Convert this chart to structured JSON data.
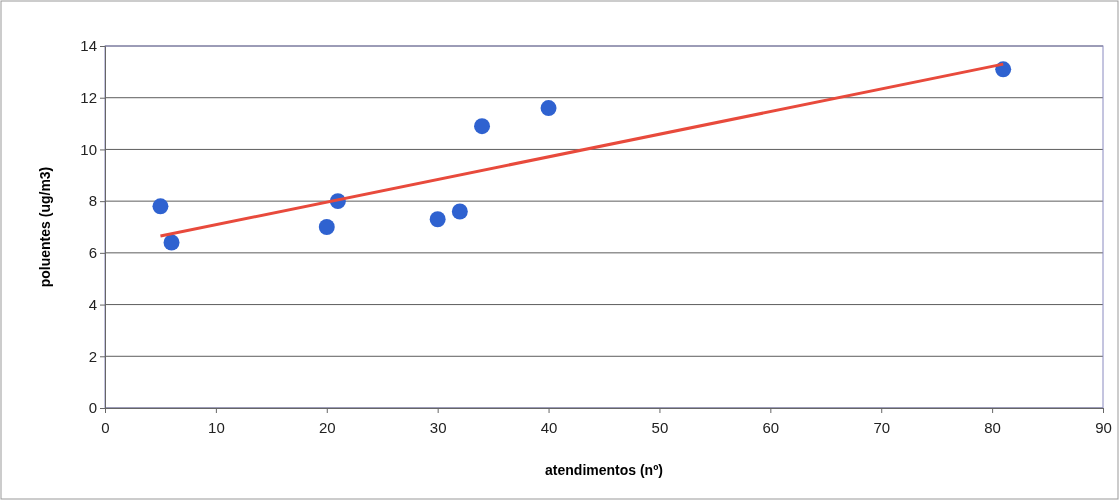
{
  "chart_data": {
    "type": "scatter",
    "xlabel": "atendimentos (nº)",
    "ylabel": "poluentes (ug/m3)",
    "xlim": [
      0,
      90
    ],
    "xticks": [
      0,
      10,
      20,
      30,
      40,
      50,
      60,
      70,
      80,
      90
    ],
    "ylim": [
      0,
      14
    ],
    "yticks": [
      0,
      2,
      4,
      6,
      8,
      10,
      12,
      14
    ],
    "grid": "y",
    "marker": "circle",
    "series": [
      {
        "color": "#2f62d0",
        "x": [
          5,
          6,
          20,
          21,
          30,
          32,
          34,
          40,
          81
        ],
        "values": [
          7.8,
          6.4,
          7.0,
          8.0,
          7.3,
          7.6,
          10.9,
          11.6,
          13.1
        ]
      },
      {
        "type": "line",
        "color": "#e84a3c",
        "x": [
          5,
          81
        ],
        "values": [
          6.65,
          13.3
        ],
        "line_style": "solid",
        "marker": "none"
      }
    ]
  }
}
